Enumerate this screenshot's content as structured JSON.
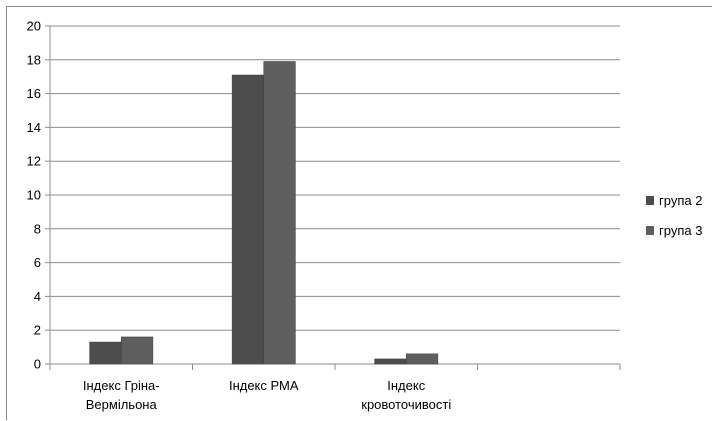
{
  "chart_data": {
    "type": "bar",
    "categories": [
      [
        "Індекс Гріна-",
        "Вермільона"
      ],
      [
        "Індекс РМА"
      ],
      [
        "Індекс",
        "кровоточивості"
      ],
      [
        ""
      ]
    ],
    "series": [
      {
        "name": "група 2",
        "values": [
          1.3,
          17.1,
          0.3,
          null
        ],
        "color": "#4d4d4d"
      },
      {
        "name": "група 3",
        "values": [
          1.6,
          17.9,
          0.6,
          null
        ],
        "color": "#5e5e5e"
      }
    ],
    "ylim": [
      0,
      20
    ],
    "yticks": [
      0,
      2,
      4,
      6,
      8,
      10,
      12,
      14,
      16,
      18,
      20
    ],
    "grid": true,
    "legend": "right",
    "title": "",
    "xlabel": "",
    "ylabel": ""
  }
}
